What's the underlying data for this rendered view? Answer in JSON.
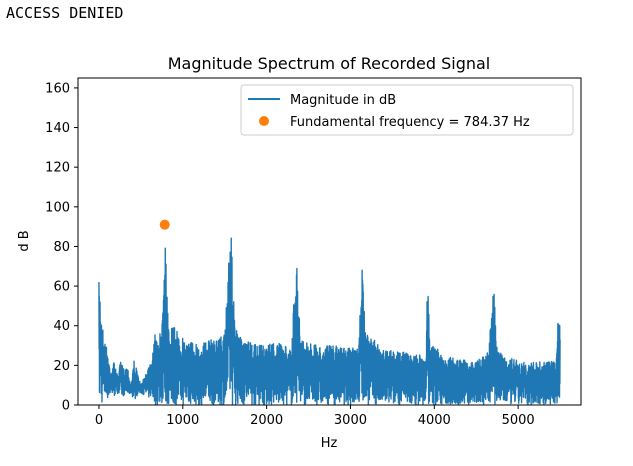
{
  "console": {
    "output_text": "ACCESS DENIED"
  },
  "chart_data": {
    "type": "line",
    "title": "Magnitude Spectrum of Recorded Signal",
    "xlabel": "Hz",
    "ylabel": "d B",
    "xlim": [
      -250,
      5750
    ],
    "ylim": [
      0,
      165
    ],
    "xticks": [
      0,
      1000,
      2000,
      3000,
      4000,
      5000
    ],
    "xtick_labels": [
      "0",
      "1000",
      "2000",
      "3000",
      "4000",
      "5000"
    ],
    "yticks": [
      0,
      20,
      40,
      60,
      80,
      100,
      120,
      140,
      160
    ],
    "ytick_labels": [
      "0",
      "20",
      "40",
      "60",
      "80",
      "100",
      "120",
      "140",
      "160"
    ],
    "grid": false,
    "legend_position": "upper right",
    "colors": {
      "magnitude_line": "#1f77b4",
      "fundamental_marker": "#ff7f0e"
    },
    "series": [
      {
        "name": "Magnitude in dB",
        "kind": "line",
        "color": "#1f77b4",
        "envelope": {
          "x": [
            0,
            15,
            30,
            60,
            100,
            140,
            180,
            220,
            260,
            300,
            340,
            380,
            420,
            460,
            500,
            540,
            580,
            620,
            660,
            700,
            740,
            784,
            830,
            880,
            1000,
            1200,
            1400,
            1500,
            1568,
            1620,
            1700,
            1900,
            2100,
            2300,
            2353,
            2400,
            2600,
            2800,
            3000,
            3100,
            3137,
            3180,
            3400,
            3600,
            3800,
            3900,
            3921,
            3950,
            4100,
            4300,
            4500,
            4650,
            4705,
            4750,
            4900,
            5100,
            5300,
            5450,
            5480,
            5500
          ],
          "upper": [
            62,
            58,
            46,
            34,
            28,
            17,
            22,
            15,
            22,
            18,
            20,
            10,
            23,
            16,
            10,
            14,
            20,
            22,
            36,
            33,
            38,
            91,
            38,
            40,
            34,
            31,
            34,
            36,
            95,
            40,
            33,
            30,
            32,
            28,
            83,
            34,
            30,
            30,
            29,
            29,
            78,
            36,
            29,
            27,
            25,
            26,
            67,
            33,
            25,
            23,
            22,
            27,
            64,
            27,
            24,
            21,
            22,
            22,
            54,
            40
          ],
          "lower": [
            0,
            0,
            0,
            2,
            3,
            5,
            4,
            6,
            3,
            5,
            4,
            6,
            2,
            5,
            6,
            5,
            3,
            4,
            0,
            0,
            0,
            0,
            0,
            0,
            0,
            0,
            0,
            0,
            0,
            0,
            0,
            0,
            0,
            0,
            0,
            0,
            0,
            0,
            0,
            0,
            0,
            0,
            0,
            0,
            0,
            0,
            0,
            0,
            0,
            0,
            0,
            0,
            0,
            0,
            0,
            0,
            0,
            0,
            0,
            0
          ]
        }
      },
      {
        "name": "Fundamental frequency = 784.37 Hz",
        "kind": "scatter",
        "color": "#ff7f0e",
        "x": [
          784.37
        ],
        "y": [
          91
        ]
      }
    ]
  }
}
